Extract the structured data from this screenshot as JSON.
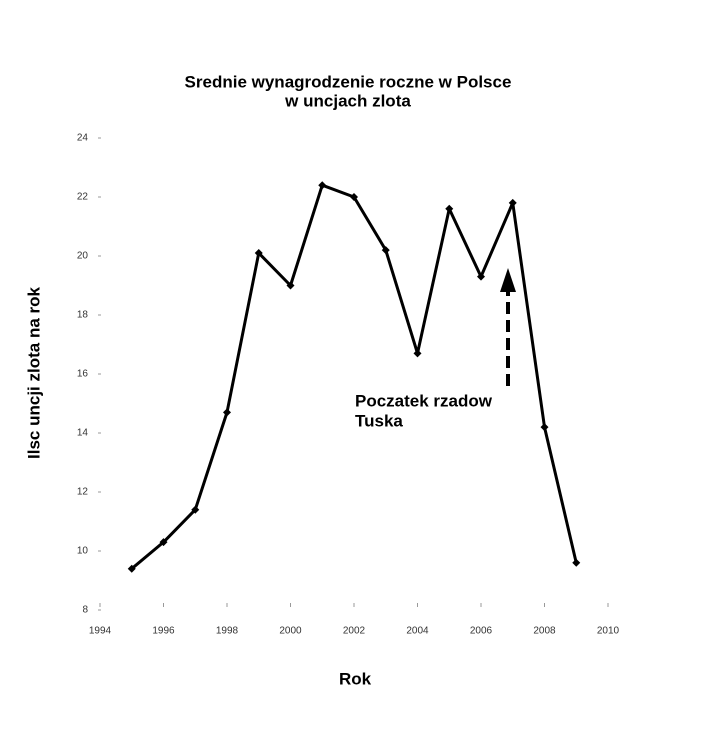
{
  "chart_data": {
    "type": "line",
    "title": [
      "Srednie wynagrodzenie roczne w Polsce",
      "w uncjach zlota"
    ],
    "x_label": "Rok",
    "y_label": "Ilsc uncji zlota na rok",
    "x": [
      1995,
      1996,
      1997,
      1998,
      1999,
      2000,
      2001,
      2002,
      2003,
      2004,
      2005,
      2006,
      2007,
      2008,
      2009
    ],
    "values": [
      9.4,
      10.3,
      11.4,
      14.7,
      20.1,
      19.0,
      22.4,
      22.0,
      20.2,
      16.7,
      21.6,
      19.3,
      21.8,
      14.2,
      9.6
    ],
    "color": "#000000",
    "xlim": [
      1994,
      2010
    ],
    "xticks": [
      1994,
      1996,
      1998,
      2000,
      2002,
      2004,
      2006,
      2008,
      2010
    ],
    "ylim": [
      8,
      24
    ],
    "yticks": [
      8,
      10,
      12,
      14,
      16,
      18,
      20,
      22,
      24
    ],
    "annotation": [
      "Poczatek rzadow",
      "Tuska"
    ]
  }
}
